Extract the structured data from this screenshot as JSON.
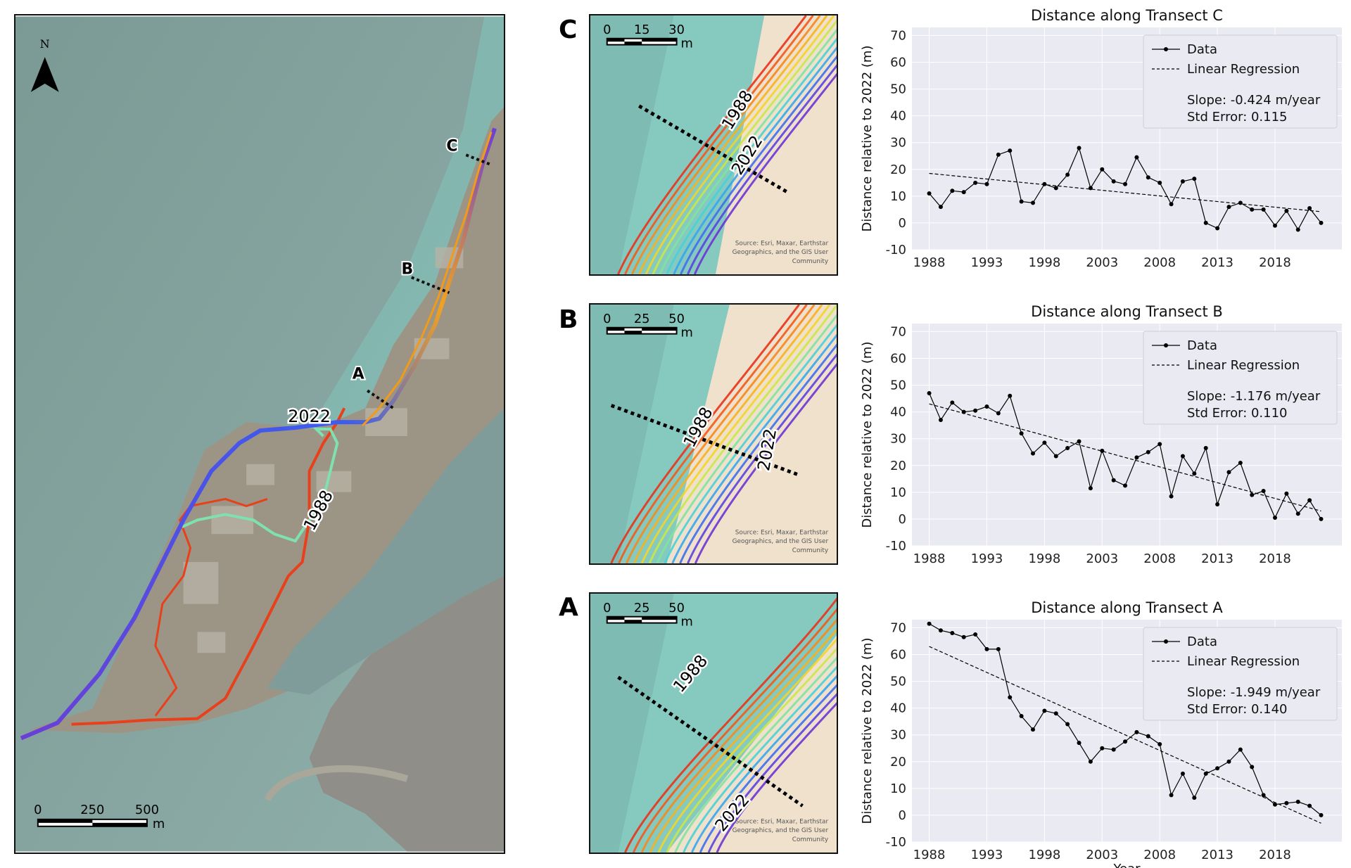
{
  "main_map": {
    "north_label": "N",
    "scale": {
      "ticks": [
        "0",
        "250",
        "500"
      ],
      "unit": "m"
    },
    "transect_labels": [
      "A",
      "B",
      "C"
    ],
    "year_labels": {
      "recent": "2022",
      "old": "1988"
    }
  },
  "insets": [
    {
      "letter": "C",
      "scale_ticks": [
        "0",
        "15",
        "30"
      ],
      "unit": "m",
      "year_old": "1988",
      "year_recent": "2022",
      "source": [
        "Source: Esri, Maxar, Earthstar",
        "Geographics, and the GIS User",
        "Community"
      ]
    },
    {
      "letter": "B",
      "scale_ticks": [
        "0",
        "25",
        "50"
      ],
      "unit": "m",
      "year_old": "1988",
      "year_recent": "2022",
      "source": [
        "Source: Esri, Maxar, Earthstar",
        "Geographics, and the GIS User",
        "Community"
      ]
    },
    {
      "letter": "A",
      "scale_ticks": [
        "0",
        "25",
        "50"
      ],
      "unit": "m",
      "year_old": "1988",
      "year_recent": "2022",
      "source": [
        "Source: Esri, Maxar, Earthstar",
        "Geographics, and the GIS User",
        "Community"
      ]
    }
  ],
  "colors": {
    "data_line": "#000000",
    "regression_line": "#000000",
    "plot_background": "#eaeaf2",
    "grid": "#ffffff"
  },
  "chart_data": [
    {
      "type": "line",
      "title": "Distance along Transect C",
      "xlabel": "",
      "ylabel": "Distance relative to 2022 (m)",
      "xlim": [
        1986.5,
        2023.8
      ],
      "ylim": [
        -10,
        73
      ],
      "xticks": [
        1988,
        1993,
        1998,
        2003,
        2008,
        2013,
        2018
      ],
      "yticks": [
        -10,
        0,
        10,
        20,
        30,
        40,
        50,
        60,
        70
      ],
      "legend": {
        "placement": "top-right",
        "data_label": "Data",
        "regression_label": "Linear Regression",
        "slope_text": "Slope: -0.424 m/year",
        "stderr_text": "Std Error: 0.115"
      },
      "series": [
        {
          "name": "Data",
          "x": [
            1988,
            1989,
            1990,
            1991,
            1992,
            1993,
            1994,
            1995,
            1996,
            1997,
            1998,
            1999,
            2000,
            2001,
            2002,
            2003,
            2004,
            2005,
            2006,
            2007,
            2008,
            2009,
            2010,
            2011,
            2012,
            2013,
            2014,
            2015,
            2016,
            2017,
            2018,
            2019,
            2020,
            2021,
            2022
          ],
          "y": [
            11,
            6,
            12,
            11.5,
            15,
            14.5,
            25.5,
            27,
            8,
            7.5,
            14.5,
            13,
            18,
            28,
            13,
            20,
            15.5,
            14.5,
            24.5,
            17,
            15,
            7,
            15.5,
            16.5,
            0,
            -2,
            6,
            7.5,
            5,
            5,
            -1,
            4.5,
            -2.5,
            5.5,
            0
          ]
        },
        {
          "name": "Linear Regression",
          "x": [
            1988,
            2022
          ],
          "y": [
            18.5,
            4.2
          ]
        }
      ]
    },
    {
      "type": "line",
      "title": "Distance along Transect B",
      "xlabel": "",
      "ylabel": "Distance relative to 2022 (m)",
      "xlim": [
        1986.5,
        2023.8
      ],
      "ylim": [
        -10,
        73
      ],
      "xticks": [
        1988,
        1993,
        1998,
        2003,
        2008,
        2013,
        2018
      ],
      "yticks": [
        -10,
        0,
        10,
        20,
        30,
        40,
        50,
        60,
        70
      ],
      "legend": {
        "placement": "top-right",
        "data_label": "Data",
        "regression_label": "Linear Regression",
        "slope_text": "Slope: -1.176 m/year",
        "stderr_text": "Std Error: 0.110"
      },
      "series": [
        {
          "name": "Data",
          "x": [
            1988,
            1989,
            1990,
            1991,
            1992,
            1993,
            1994,
            1995,
            1996,
            1997,
            1998,
            1999,
            2000,
            2001,
            2002,
            2003,
            2004,
            2005,
            2006,
            2007,
            2008,
            2009,
            2010,
            2011,
            2012,
            2013,
            2014,
            2015,
            2016,
            2017,
            2018,
            2019,
            2020,
            2021,
            2022
          ],
          "y": [
            47,
            37,
            43.5,
            40,
            40.5,
            42,
            39.5,
            46,
            32,
            24.5,
            28.5,
            23.5,
            26.5,
            29,
            11.5,
            25.5,
            14.5,
            12.5,
            23,
            25,
            28,
            8.5,
            23.5,
            17,
            26.5,
            5.5,
            17.5,
            21,
            9,
            10.5,
            0.5,
            9.5,
            2,
            7,
            0
          ]
        },
        {
          "name": "Linear Regression",
          "x": [
            1988,
            2022
          ],
          "y": [
            43,
            3
          ]
        }
      ]
    },
    {
      "type": "line",
      "title": "Distance along Transect A",
      "xlabel": "Year",
      "ylabel": "Distance relative to 2022 (m)",
      "xlim": [
        1986.5,
        2023.8
      ],
      "ylim": [
        -10,
        73
      ],
      "xticks": [
        1988,
        1993,
        1998,
        2003,
        2008,
        2013,
        2018
      ],
      "yticks": [
        -10,
        0,
        10,
        20,
        30,
        40,
        50,
        60,
        70
      ],
      "legend": {
        "placement": "top-right",
        "data_label": "Data",
        "regression_label": "Linear Regression",
        "slope_text": "Slope: -1.949 m/year",
        "stderr_text": "Std Error: 0.140"
      },
      "series": [
        {
          "name": "Data",
          "x": [
            1988,
            1989,
            1990,
            1991,
            1992,
            1993,
            1994,
            1995,
            1996,
            1997,
            1998,
            1999,
            2000,
            2001,
            2002,
            2003,
            2004,
            2005,
            2006,
            2007,
            2008,
            2009,
            2010,
            2011,
            2012,
            2013,
            2014,
            2015,
            2016,
            2017,
            2018,
            2019,
            2020,
            2021,
            2022
          ],
          "y": [
            71.5,
            69,
            68,
            66.5,
            67.5,
            62,
            62,
            44,
            37,
            32,
            39,
            38,
            34,
            27,
            20,
            25,
            24.5,
            27.5,
            31,
            29.5,
            26.5,
            7.5,
            15.5,
            6.5,
            15.5,
            17.5,
            20,
            24.5,
            18,
            7.5,
            4,
            4.5,
            5,
            3.5,
            0
          ]
        },
        {
          "name": "Linear Regression",
          "x": [
            1988,
            2022
          ],
          "y": [
            63,
            -3
          ]
        }
      ]
    }
  ]
}
